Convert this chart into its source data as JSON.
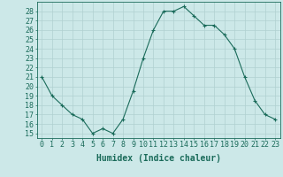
{
  "x": [
    0,
    1,
    2,
    3,
    4,
    5,
    6,
    7,
    8,
    9,
    10,
    11,
    12,
    13,
    14,
    15,
    16,
    17,
    18,
    19,
    20,
    21,
    22,
    23
  ],
  "y": [
    21,
    19,
    18,
    17,
    16.5,
    15,
    15.5,
    15,
    16.5,
    19.5,
    23,
    26,
    28,
    28,
    28.5,
    27.5,
    26.5,
    26.5,
    25.5,
    24,
    21,
    18.5,
    17,
    16.5
  ],
  "line_color": "#1a6b5a",
  "marker_color": "#1a6b5a",
  "bg_color": "#cce8e8",
  "grid_color": "#b0d0d0",
  "xlabel": "Humidex (Indice chaleur)",
  "xlim": [
    -0.5,
    23.5
  ],
  "ylim": [
    14.5,
    29
  ],
  "yticks": [
    15,
    16,
    17,
    18,
    19,
    20,
    21,
    22,
    23,
    24,
    25,
    26,
    27,
    28
  ],
  "xtick_labels": [
    "0",
    "1",
    "2",
    "3",
    "4",
    "5",
    "6",
    "7",
    "8",
    "9",
    "10",
    "11",
    "12",
    "13",
    "14",
    "15",
    "16",
    "17",
    "18",
    "19",
    "20",
    "21",
    "22",
    "23"
  ],
  "tick_color": "#1a6b5a",
  "label_fontsize": 7,
  "tick_fontsize": 6
}
